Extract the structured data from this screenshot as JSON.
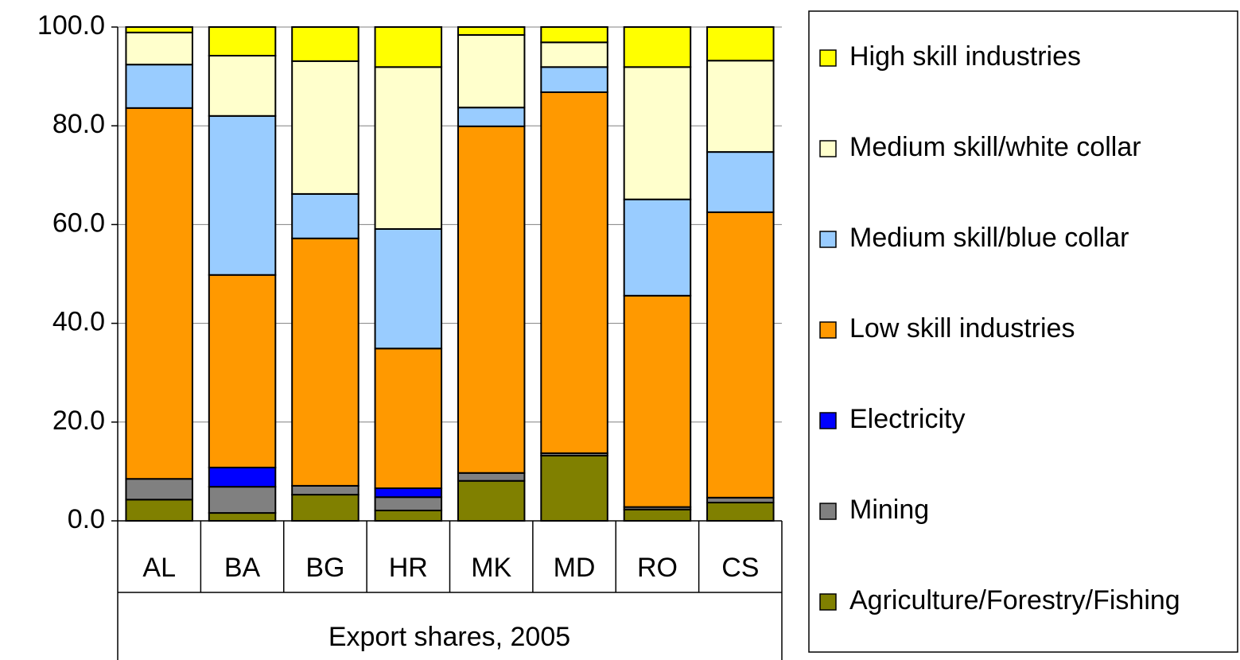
{
  "chart_data": {
    "type": "stacked_bar",
    "xlabel": "Export shares, 2005",
    "categories": [
      "AL",
      "BA",
      "BG",
      "HR",
      "MK",
      "MD",
      "RO",
      "CS"
    ],
    "series": [
      {
        "name": "Agriculture/Forestry/Fishing",
        "color": "#808000",
        "values": [
          4.3,
          1.6,
          5.3,
          2.1,
          8.1,
          13.2,
          2.3,
          3.7
        ]
      },
      {
        "name": "Mining",
        "color": "#808080",
        "values": [
          4.2,
          5.3,
          1.8,
          2.7,
          1.6,
          0.5,
          0.5,
          1.0
        ]
      },
      {
        "name": "Electricity",
        "color": "#0000ff",
        "values": [
          0,
          3.9,
          0,
          1.8,
          0,
          0,
          0,
          0
        ]
      },
      {
        "name": "Low skill industries",
        "color": "#ff9900",
        "values": [
          75.1,
          39.0,
          50.1,
          28.3,
          70.2,
          73.1,
          42.8,
          57.8
        ]
      },
      {
        "name": "Medium skill/blue collar",
        "color": "#99ccff",
        "values": [
          8.8,
          32.2,
          9.0,
          24.2,
          3.8,
          5.1,
          19.5,
          12.2
        ]
      },
      {
        "name": "Medium skill/white collar",
        "color": "#ffffcc",
        "values": [
          6.5,
          12.2,
          26.9,
          32.8,
          14.7,
          5.0,
          26.8,
          18.5
        ]
      },
      {
        "name": "High skill industries",
        "color": "#ffff00",
        "values": [
          1.1,
          5.8,
          6.9,
          8.1,
          1.6,
          3.1,
          8.1,
          6.8
        ]
      }
    ],
    "ylim": [
      0,
      100
    ],
    "yticks": [
      {
        "value": 0,
        "label": "0.0"
      },
      {
        "value": 20,
        "label": "20.0"
      },
      {
        "value": 40,
        "label": "40.0"
      },
      {
        "value": 60,
        "label": "60.0"
      },
      {
        "value": 80,
        "label": "80.0"
      },
      {
        "value": 100,
        "label": "100.0"
      }
    ],
    "grid": true,
    "legend": "right"
  }
}
